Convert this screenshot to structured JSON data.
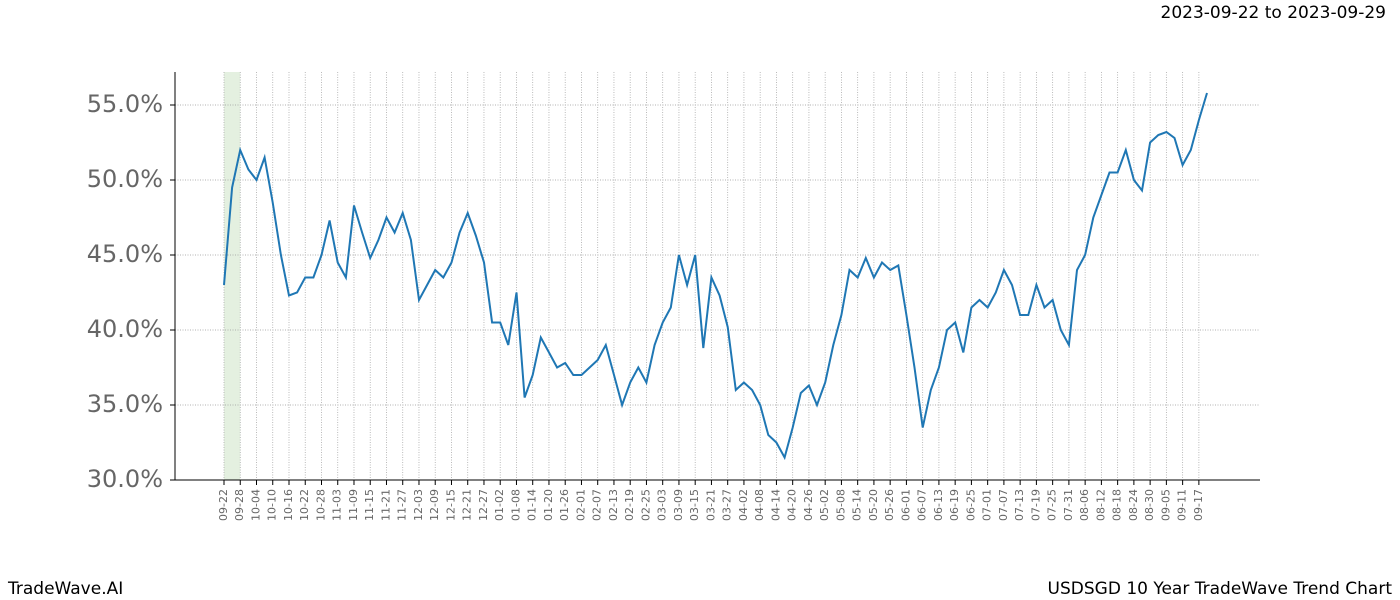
{
  "chart_data": {
    "type": "line",
    "title": "2023-09-22 to 2023-09-29",
    "brand": "TradeWave.AI",
    "caption": "USDSGD 10 Year TradeWave Trend Chart",
    "categories": [
      "09-22",
      null,
      "09-28",
      null,
      "10-04",
      null,
      "10-10",
      null,
      "10-16",
      null,
      "10-22",
      null,
      "10-28",
      null,
      "11-03",
      null,
      "11-09",
      null,
      "11-15",
      null,
      "11-21",
      null,
      "11-27",
      null,
      "12-03",
      null,
      "12-09",
      null,
      "12-15",
      null,
      "12-21",
      null,
      "12-27",
      null,
      "01-02",
      null,
      "01-08",
      null,
      "01-14",
      null,
      "01-20",
      null,
      "01-26",
      null,
      "02-01",
      null,
      "02-07",
      null,
      "02-13",
      null,
      "02-19",
      null,
      "02-25",
      null,
      "03-03",
      null,
      "03-09",
      null,
      "03-15",
      null,
      "03-21",
      null,
      "03-27",
      null,
      "04-02",
      null,
      "04-08",
      null,
      "04-14",
      null,
      "04-20",
      null,
      "04-26",
      null,
      "05-02",
      null,
      "05-08",
      null,
      "05-14",
      null,
      "05-20",
      null,
      "05-26",
      null,
      "06-01",
      null,
      "06-07",
      null,
      "06-13",
      null,
      "06-19",
      null,
      "06-25",
      null,
      "07-01",
      null,
      "07-07",
      null,
      "07-13",
      null,
      "07-19",
      null,
      "07-25",
      null,
      "07-31",
      null,
      "08-06",
      null,
      "08-12",
      null,
      "08-18",
      null,
      "08-24",
      null,
      "08-30",
      null,
      "09-05",
      null,
      "09-11",
      null,
      "09-17",
      null
    ],
    "series": [
      {
        "color": "#1f77b4",
        "values": [
          43,
          49.5,
          52,
          50.7,
          50,
          51.5,
          48.5,
          45,
          42.3,
          42.5,
          43.5,
          43.5,
          45,
          47.3,
          44.5,
          43.5,
          48.3,
          46.5,
          44.8,
          46,
          47.5,
          46.5,
          47.8,
          46,
          42,
          43,
          44,
          43.5,
          44.5,
          46.5,
          47.8,
          46.3,
          44.5,
          40.5,
          40.5,
          39,
          42.5,
          35.5,
          37,
          39.5,
          38.5,
          37.5,
          37.8,
          37,
          37,
          37.5,
          38,
          39,
          37,
          35,
          36.5,
          37.5,
          36.5,
          39,
          40.5,
          41.5,
          45,
          43,
          45,
          38.8,
          43.5,
          42.3,
          40.2,
          36,
          36.5,
          36,
          35,
          33,
          32.5,
          31.5,
          33.5,
          35.8,
          36.3,
          35,
          36.5,
          39,
          41,
          44,
          43.5,
          44.8,
          43.5,
          44.5,
          44,
          44.3,
          41,
          37.5,
          33.5,
          36,
          37.5,
          40,
          40.5,
          38.5,
          41.5,
          42,
          41.5,
          42.5,
          44,
          43,
          41,
          41,
          43,
          41.5,
          42,
          40,
          39,
          44,
          45,
          47.5,
          49,
          50.5,
          50.5,
          52,
          50,
          49.3,
          52.5,
          53,
          53.2,
          52.8,
          51,
          52,
          54,
          55.8
        ]
      }
    ],
    "ylim": [
      30,
      57.2
    ],
    "yticks": [
      {
        "value": 30,
        "label": "30.0%"
      },
      {
        "value": 35,
        "label": "35.0%"
      },
      {
        "value": 40,
        "label": "40.0%"
      },
      {
        "value": 45,
        "label": "45.0%"
      },
      {
        "value": 50,
        "label": "50.0%"
      },
      {
        "value": 55,
        "label": "55.0%"
      }
    ],
    "grid": true
  }
}
